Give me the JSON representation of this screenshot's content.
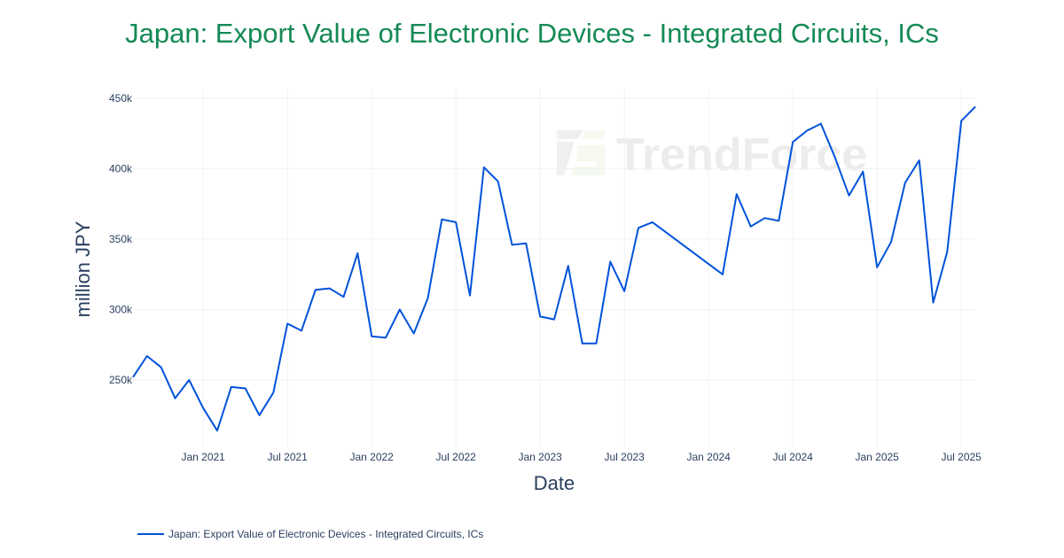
{
  "chart_data": {
    "type": "line",
    "title": "Japan: Export Value of Electronic Devices - Integrated Circuits, ICs",
    "xlabel": "Date",
    "ylabel": "million JPY",
    "xticks": [
      "Jan 2021",
      "Jul 2021",
      "Jan 2022",
      "Jul 2022",
      "Jan 2023",
      "Jul 2023",
      "Jan 2024",
      "Jul 2024",
      "Jan 2025",
      "Jul 2025"
    ],
    "xtick_dates": [
      "2021-01",
      "2021-07",
      "2022-01",
      "2022-07",
      "2023-01",
      "2023-07",
      "2024-01",
      "2024-07",
      "2025-01",
      "2025-07"
    ],
    "yticks": [
      250000,
      300000,
      350000,
      400000,
      450000
    ],
    "ytick_labels": [
      "250k",
      "300k",
      "350k",
      "400k",
      "450k"
    ],
    "xlim": [
      "2020-08",
      "2025-08"
    ],
    "ylim": [
      203000,
      457000
    ],
    "grid": true,
    "legend_placement": "bottom-left",
    "watermark": "TrendForce",
    "series": [
      {
        "name": "Japan: Export Value of Electronic Devices - Integrated Circuits, ICs",
        "color": "#0052d9",
        "x": [
          "2020-08",
          "2020-09",
          "2020-10",
          "2020-11",
          "2020-12",
          "2021-01",
          "2021-02",
          "2021-03",
          "2021-04",
          "2021-05",
          "2021-06",
          "2021-07",
          "2021-08",
          "2021-09",
          "2021-10",
          "2021-11",
          "2021-12",
          "2022-01",
          "2022-02",
          "2022-03",
          "2022-04",
          "2022-05",
          "2022-06",
          "2022-07",
          "2022-08",
          "2022-09",
          "2022-10",
          "2022-11",
          "2022-12",
          "2023-01",
          "2023-02",
          "2023-03",
          "2023-04",
          "2023-05",
          "2023-06",
          "2023-07",
          "2023-08",
          "2023-09",
          "2024-02",
          "2024-03",
          "2024-04",
          "2024-05",
          "2024-06",
          "2024-07",
          "2024-08",
          "2024-09",
          "2024-10",
          "2024-11",
          "2024-12",
          "2025-01",
          "2025-02",
          "2025-03",
          "2025-04",
          "2025-05",
          "2025-06",
          "2025-07",
          "2025-08"
        ],
        "values": [
          252000,
          267000,
          259000,
          237000,
          250000,
          230000,
          214000,
          245000,
          244000,
          225000,
          241000,
          290000,
          285000,
          314000,
          315000,
          309000,
          340000,
          281000,
          280000,
          300000,
          283000,
          308000,
          364000,
          362000,
          310000,
          401000,
          391000,
          346000,
          347000,
          295000,
          293000,
          331000,
          276000,
          276000,
          334000,
          313000,
          358000,
          362000,
          325000,
          382000,
          359000,
          365000,
          363000,
          419000,
          427000,
          432000,
          408000,
          381000,
          398000,
          330000,
          348000,
          390000,
          406000,
          305000,
          341000,
          434000,
          444000
        ]
      }
    ]
  }
}
